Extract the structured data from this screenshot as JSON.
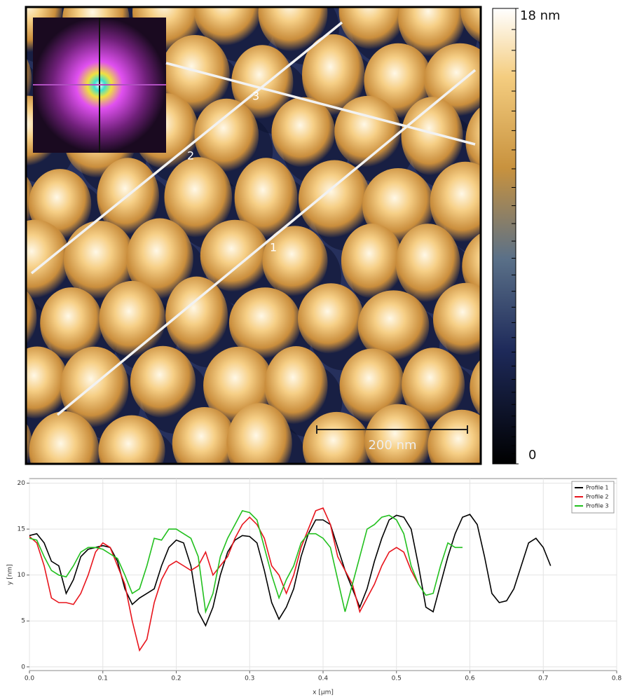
{
  "image": {
    "line_labels": [
      "1",
      "2",
      "3"
    ],
    "scale_bar": "200 nm",
    "colorbar": {
      "clim": [
        0,
        18
      ],
      "ticks": [
        {
          "value": 18,
          "label": "18 nm"
        },
        0
      ]
    }
  },
  "chart_data": {
    "type": "line",
    "xlabel": "x [µm]",
    "ylabel": "y [nm]",
    "xlim": [
      0,
      0.8
    ],
    "ylim": [
      -0.4,
      20.5
    ],
    "xticks": [
      {
        "value": 0,
        "label": "0.0"
      },
      0.1,
      0.2,
      0.3,
      0.4,
      0.5,
      0.6,
      0.7,
      0.8
    ],
    "yticks": [
      0,
      5,
      10,
      15,
      20
    ],
    "grid": true,
    "legend": "top-right",
    "x": [
      0,
      0.01,
      0.02,
      0.03,
      0.04,
      0.05,
      0.06,
      0.07,
      0.08,
      0.09,
      0.1,
      0.11,
      0.12,
      0.13,
      0.14,
      0.15,
      0.16,
      0.17,
      0.18,
      0.19,
      0.2,
      0.21,
      0.22,
      0.23,
      0.24,
      0.25,
      0.26,
      0.27,
      0.28,
      0.29,
      0.3,
      0.31,
      0.32,
      0.33,
      0.34,
      0.35,
      0.36,
      0.37,
      0.38,
      0.39,
      0.4,
      0.41,
      0.42,
      0.43,
      0.44,
      0.45,
      0.46,
      0.47,
      0.48,
      0.49,
      0.5,
      0.51,
      0.52,
      0.53,
      0.54,
      0.55,
      0.56,
      0.57,
      0.58,
      0.59,
      0.6,
      0.61,
      0.62,
      0.63,
      0.64,
      0.65,
      0.66,
      0.67,
      0.68,
      0.69,
      0.7,
      0.71
    ],
    "series": [
      {
        "name": "Profile 1",
        "color": "#000000",
        "values": [
          14.3,
          14.5,
          13.5,
          11.5,
          11,
          8,
          9.5,
          12,
          12.8,
          13,
          13.2,
          13,
          11.5,
          8.5,
          6.8,
          7.5,
          8,
          8.5,
          11,
          13,
          13.8,
          13.5,
          11,
          6,
          4.5,
          6.5,
          10,
          12.5,
          13.8,
          14.3,
          14.2,
          13.5,
          10.5,
          7,
          5.2,
          6.5,
          8.5,
          12,
          14.5,
          16,
          16,
          15.5,
          13,
          10.5,
          8.5,
          6.5,
          8.5,
          11.5,
          14,
          16,
          16.5,
          16.3,
          15,
          11,
          6.5,
          6,
          9,
          12,
          14.5,
          16.3,
          16.6,
          15.5,
          12,
          8,
          7,
          7.2,
          8.5,
          11,
          13.5,
          14,
          13,
          11
        ]
      },
      {
        "name": "Profile 2",
        "color": "#e8141c",
        "values": [
          14.2,
          13.5,
          11,
          7.5,
          7,
          7,
          6.8,
          8,
          10,
          12.5,
          13.5,
          13,
          11,
          9,
          5,
          1.8,
          3,
          7,
          9.5,
          11,
          11.5,
          11,
          10.5,
          11,
          12.5,
          10,
          11,
          12,
          14,
          15.5,
          16.3,
          15.5,
          14,
          11,
          10,
          8,
          10,
          13,
          15,
          17,
          17.3,
          15.5,
          12,
          10.5,
          9,
          6,
          7.5,
          9,
          11,
          12.5,
          13,
          12.5,
          10.5,
          9,
          null,
          null,
          null,
          null,
          null,
          null,
          null,
          null,
          null,
          null,
          null,
          null,
          null,
          null,
          null,
          null,
          null,
          null
        ]
      },
      {
        "name": "Profile 3",
        "color": "#22c01e",
        "values": [
          14,
          13.8,
          12,
          10.5,
          10,
          9.8,
          11,
          12.5,
          13,
          13,
          12.8,
          12.3,
          11.8,
          10,
          8,
          8.5,
          11,
          14,
          13.8,
          15,
          15,
          14.5,
          14,
          12,
          6,
          8,
          12,
          14,
          15.5,
          17,
          16.8,
          16,
          13,
          10,
          7.5,
          9.5,
          11,
          13.5,
          14.5,
          14.5,
          14,
          13,
          9.5,
          6,
          9,
          12,
          15,
          15.5,
          16.3,
          16.5,
          16,
          14.5,
          11,
          9,
          7.8,
          8,
          11,
          13.5,
          13,
          13,
          null,
          null,
          null,
          null,
          null,
          null,
          null,
          null,
          null,
          null,
          null,
          null
        ]
      }
    ]
  }
}
